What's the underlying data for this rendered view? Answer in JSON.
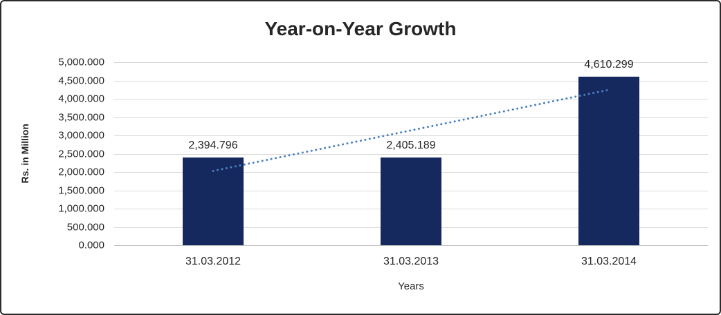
{
  "chart_data": {
    "type": "bar",
    "title": "Year-on-Year Growth",
    "xlabel": "Years",
    "ylabel": "Rs. in Million",
    "categories": [
      "31.03.2012",
      "31.03.2013",
      "31.03.2014"
    ],
    "values": [
      2394.796,
      2405.189,
      4610.299
    ],
    "data_labels": [
      "2,394.796",
      "2,405.189",
      "4,610.299"
    ],
    "ylim": [
      0,
      5000
    ],
    "ytick_step": 500,
    "ytick_labels": [
      "0.000",
      "500.000",
      "1,000.000",
      "1,500.000",
      "2,000.000",
      "2,500.000",
      "3,000.000",
      "3,500.000",
      "4,000.000",
      "4,500.000",
      "5,000.000"
    ],
    "grid": true,
    "legend": "none",
    "bar_color": "#16295f",
    "gridline_color": "#d9d9d9",
    "trendline": {
      "type": "linear",
      "style": "dotted",
      "color": "#4a80c0",
      "start_value": 2029.01,
      "end_value": 4244.51
    }
  }
}
